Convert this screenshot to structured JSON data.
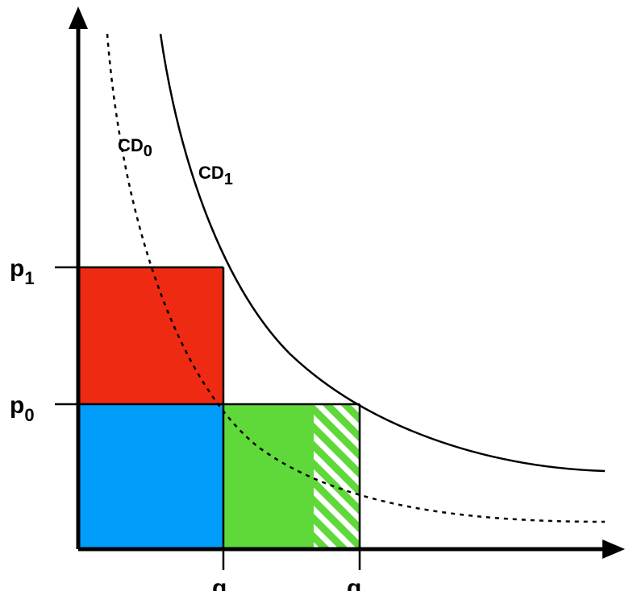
{
  "diagram": {
    "axis_labels": {
      "p1": {
        "base": "p",
        "sub": "1"
      },
      "p0": {
        "base": "p",
        "sub": "0"
      },
      "q0": {
        "base": "q",
        "sub": ""
      },
      "q1": {
        "base": "q",
        "sub": ""
      }
    },
    "curves": [
      {
        "id": "cd0",
        "label_base": "CD",
        "label_sub": "0",
        "style": "dashed"
      },
      {
        "id": "cd1",
        "label_base": "CD",
        "label_sub": "1",
        "style": "solid"
      }
    ],
    "regions": [
      {
        "id": "red-rectangle",
        "color": "#ee2a12"
      },
      {
        "id": "blue-rectangle",
        "color": "#009dfb"
      },
      {
        "id": "green-rectangle",
        "color": "#5fd83a"
      },
      {
        "id": "hatched-green-strip",
        "color": "#5fd83a",
        "pattern": "diagonal-stripes"
      }
    ],
    "colors": {
      "axis": "#000000",
      "red": "#ee2a12",
      "blue": "#009dfb",
      "green": "#5fd83a",
      "hatch": "#ffffff"
    }
  }
}
